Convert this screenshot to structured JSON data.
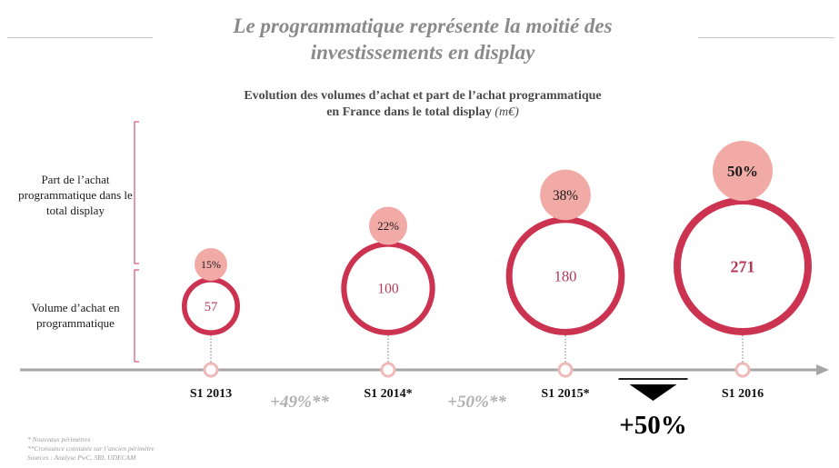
{
  "page_title_line1": "Le programmatique représente la moitié des",
  "page_title_line2": "investissements en display",
  "chart_title_line1": "Evolution des volumes d’achat et part de l’achat programmatique",
  "chart_title_line2": "en France dans le total display",
  "chart_title_unit": "(m€)",
  "side_label_share": "Part de l’achat programmatique dans le total display",
  "side_label_volume": "Volume d’achat en programmatique",
  "chart_data": {
    "type": "bubble",
    "categories": [
      "S1 2013",
      "S1 2014*",
      "S1 2015*",
      "S1 2016"
    ],
    "volume": [
      57,
      100,
      180,
      271
    ],
    "volume_labels": [
      "57",
      "100",
      "180",
      "271"
    ],
    "share_pct": [
      15,
      22,
      38,
      50
    ],
    "share_labels": [
      "15%",
      "22%",
      "38%",
      "50%"
    ],
    "growth_labels": [
      "+49%**",
      "+50%**"
    ],
    "total_growth_label": "+50%"
  },
  "footnotes": [
    "* Nouveaux périmètres",
    "**Croissance constatée sur l’ancien périmètre",
    "Sources : Analyse PwC, SRI, UDECAM"
  ],
  "colors": {
    "ring": "#cc3350",
    "bubble": "#f2aaa6",
    "timeline": "#a6a6a6",
    "volume_text": "#b53a58",
    "growth_text": "#b0b0b0"
  }
}
